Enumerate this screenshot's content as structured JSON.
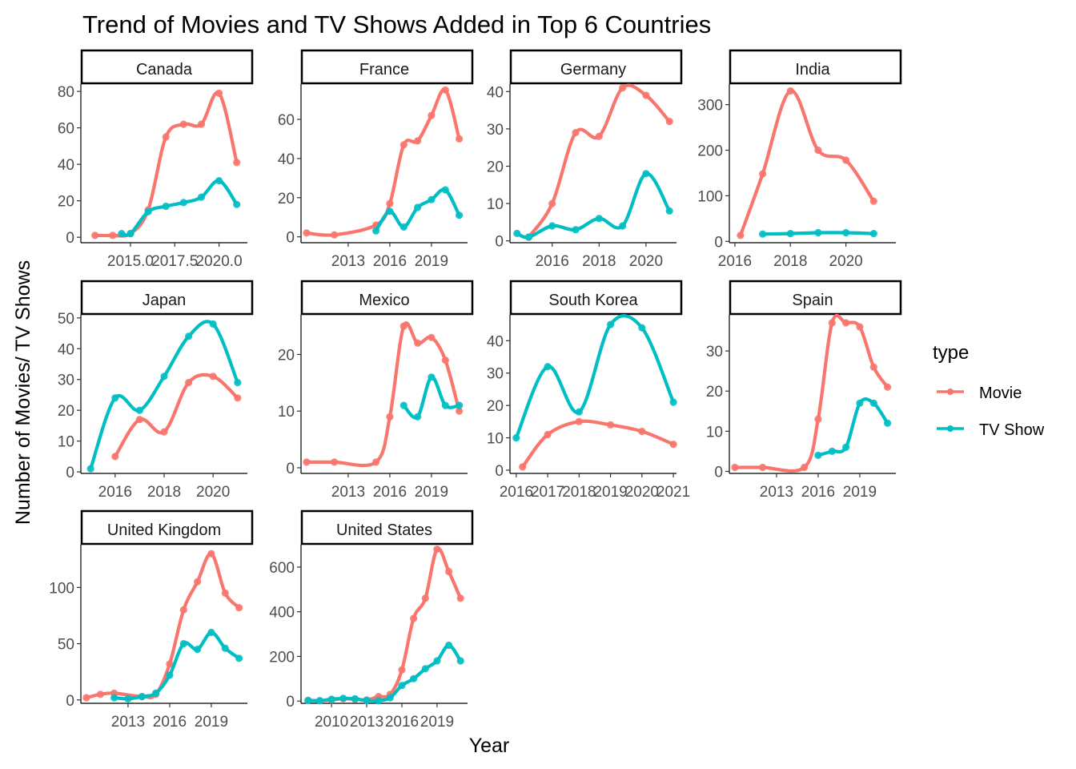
{
  "chart_data": {
    "type": "line",
    "title": "Trend of Movies and TV Shows Added in Top 6 Countries",
    "xlabel": "Year",
    "ylabel": "Number of Movies/ TV Shows",
    "facet_layout": "4 columns, free scales",
    "grid": false,
    "legend": {
      "title": "type",
      "placement": "right",
      "items": [
        {
          "label": "Movie",
          "color": "#F8766D"
        },
        {
          "label": "TV Show",
          "color": "#00BFC4"
        }
      ]
    },
    "series_colors": {
      "Movie": "#F8766D",
      "TV Show": "#00BFC4"
    },
    "facets": [
      {
        "name": "Canada",
        "xlim": [
          2012.2,
          2021.6
        ],
        "ylim": [
          -3,
          84
        ],
        "xticks": [
          2015,
          2017.5,
          2020
        ],
        "xtick_labels": [
          "2015.0",
          "2017.5",
          "2020.0"
        ],
        "yticks": [
          0,
          20,
          40,
          60,
          80
        ],
        "series": [
          {
            "type": "Movie",
            "x": [
              2013,
              2014,
              2015,
              2016,
              2017,
              2018,
              2019,
              2020,
              2021
            ],
            "y": [
              1,
              1,
              2,
              15,
              55,
              62,
              62,
              79,
              41
            ]
          },
          {
            "type": "TV Show",
            "x": [
              2014.5,
              2015,
              2016,
              2017,
              2018,
              2019,
              2020,
              2021
            ],
            "y": [
              2,
              2,
              14,
              17,
              19,
              22,
              31,
              18
            ]
          }
        ]
      },
      {
        "name": "France",
        "xlim": [
          2009.6,
          2021.6
        ],
        "ylim": [
          -3,
          78
        ],
        "xticks": [
          2013,
          2016,
          2019
        ],
        "xtick_labels": [
          "2013",
          "2016",
          "2019"
        ],
        "yticks": [
          0,
          20,
          40,
          60
        ],
        "series": [
          {
            "type": "Movie",
            "x": [
              2010,
              2012,
              2015,
              2016,
              2017,
              2018,
              2019,
              2020,
              2021
            ],
            "y": [
              2,
              1,
              6,
              17,
              47,
              49,
              62,
              75,
              50
            ]
          },
          {
            "type": "TV Show",
            "x": [
              2015,
              2016,
              2017,
              2018,
              2019,
              2020,
              2021
            ],
            "y": [
              3,
              13,
              5,
              15,
              19,
              24,
              11
            ]
          }
        ]
      },
      {
        "name": "Germany",
        "xlim": [
          2014.2,
          2021.3
        ],
        "ylim": [
          -0.5,
          42
        ],
        "xticks": [
          2016,
          2018,
          2020
        ],
        "xtick_labels": [
          "2016",
          "2018",
          "2020"
        ],
        "yticks": [
          0,
          10,
          20,
          30,
          40
        ],
        "series": [
          {
            "type": "Movie",
            "x": [
              2015,
              2016,
              2017,
              2018,
              2019,
              2020,
              2021
            ],
            "y": [
              1,
              10,
              29,
              28,
              41,
              39,
              32
            ]
          },
          {
            "type": "TV Show",
            "x": [
              2014.5,
              2015,
              2016,
              2017,
              2018,
              2019,
              2020,
              2021
            ],
            "y": [
              2,
              1,
              4,
              3,
              6,
              4,
              18,
              8
            ]
          }
        ]
      },
      {
        "name": "India",
        "xlim": [
          2015.8,
          2021.8
        ],
        "ylim": [
          -3,
          345
        ],
        "xticks": [
          2016,
          2018,
          2020
        ],
        "xtick_labels": [
          "2016",
          "2018",
          "2020"
        ],
        "yticks": [
          0,
          100,
          200,
          300
        ],
        "series": [
          {
            "type": "Movie",
            "x": [
              2016.2,
              2017,
              2018,
              2019,
              2020,
              2021
            ],
            "y": [
              13,
              148,
              330,
              200,
              178,
              88
            ]
          },
          {
            "type": "TV Show",
            "x": [
              2017,
              2018,
              2019,
              2020,
              2021
            ],
            "y": [
              16,
              17,
              19,
              19,
              17
            ]
          }
        ]
      },
      {
        "name": "Japan",
        "xlim": [
          2014.6,
          2021.4
        ],
        "ylim": [
          -0.5,
          51
        ],
        "xticks": [
          2016,
          2018,
          2020
        ],
        "xtick_labels": [
          "2016",
          "2018",
          "2020"
        ],
        "yticks": [
          0,
          10,
          20,
          30,
          40,
          50
        ],
        "series": [
          {
            "type": "Movie",
            "x": [
              2016,
              2017,
              2018,
              2019,
              2020,
              2021
            ],
            "y": [
              5,
              17,
              13,
              29,
              31,
              24
            ]
          },
          {
            "type": "TV Show",
            "x": [
              2015,
              2016,
              2017,
              2018,
              2019,
              2020,
              2021
            ],
            "y": [
              1,
              24,
              20,
              31,
              44,
              48,
              29
            ]
          }
        ]
      },
      {
        "name": "Mexico",
        "xlim": [
          2009.6,
          2021.6
        ],
        "ylim": [
          -1,
          27
        ],
        "xticks": [
          2013,
          2016,
          2019
        ],
        "xtick_labels": [
          "2013",
          "2016",
          "2019"
        ],
        "yticks": [
          0,
          10,
          20
        ],
        "series": [
          {
            "type": "Movie",
            "x": [
              2010,
              2012,
              2015,
              2016,
              2017,
              2018,
              2019,
              2020,
              2021
            ],
            "y": [
              1,
              1,
              1,
              9,
              25,
              22,
              23,
              19,
              10
            ]
          },
          {
            "type": "TV Show",
            "x": [
              2017,
              2018,
              2019,
              2020,
              2021
            ],
            "y": [
              11,
              9,
              16,
              11,
              11
            ]
          }
        ]
      },
      {
        "name": "South Korea",
        "xlim": [
          2015.8,
          2021.1
        ],
        "ylim": [
          -1,
          48
        ],
        "xticks": [
          2016,
          2017,
          2018,
          2019,
          2020,
          2021
        ],
        "xtick_labels": [
          "2016",
          "2017",
          "2018",
          "2019",
          "2020",
          "2021"
        ],
        "yticks": [
          0,
          10,
          20,
          30,
          40
        ],
        "series": [
          {
            "type": "Movie",
            "x": [
              2016.2,
              2017,
              2018,
              2019,
              2020,
              2021
            ],
            "y": [
              1,
              11,
              15,
              14,
              12,
              8
            ]
          },
          {
            "type": "TV Show",
            "x": [
              2016,
              2017,
              2018,
              2019,
              2020,
              2021
            ],
            "y": [
              10,
              32,
              18,
              45,
              44,
              21
            ]
          }
        ]
      },
      {
        "name": "Spain",
        "xlim": [
          2009.6,
          2021.6
        ],
        "ylim": [
          -0.5,
          39
        ],
        "xticks": [
          2013,
          2016,
          2019
        ],
        "xtick_labels": [
          "2013",
          "2016",
          "2019"
        ],
        "yticks": [
          0,
          10,
          20,
          30
        ],
        "series": [
          {
            "type": "Movie",
            "x": [
              2010,
              2012,
              2015,
              2016,
              2017,
              2018,
              2019,
              2020,
              2021
            ],
            "y": [
              1,
              1,
              1,
              13,
              37,
              37,
              36,
              26,
              21
            ]
          },
          {
            "type": "TV Show",
            "x": [
              2016,
              2017,
              2018,
              2019,
              2020,
              2021
            ],
            "y": [
              4,
              5,
              6,
              17,
              17,
              12
            ]
          }
        ]
      },
      {
        "name": "United Kingdom",
        "xlim": [
          2009.6,
          2021.6
        ],
        "ylim": [
          -3,
          138
        ],
        "xticks": [
          2013,
          2016,
          2019
        ],
        "xtick_labels": [
          "2013",
          "2016",
          "2019"
        ],
        "yticks": [
          0,
          50,
          100
        ],
        "series": [
          {
            "type": "Movie",
            "x": [
              2010,
              2011,
              2012,
              2014,
              2015,
              2016,
              2017,
              2018,
              2019,
              2020,
              2021
            ],
            "y": [
              2,
              5,
              6,
              3,
              5,
              32,
              80,
              105,
              130,
              95,
              82
            ]
          },
          {
            "type": "TV Show",
            "x": [
              2012,
              2013,
              2014,
              2015,
              2016,
              2017,
              2018,
              2019,
              2020,
              2021
            ],
            "y": [
              2,
              1,
              3,
              6,
              22,
              50,
              45,
              60,
              46,
              37
            ]
          }
        ]
      },
      {
        "name": "United States",
        "xlim": [
          2007.4,
          2021.6
        ],
        "ylim": [
          -10,
          700
        ],
        "xticks": [
          2010,
          2013,
          2016,
          2019
        ],
        "xtick_labels": [
          "2010",
          "2013",
          "2016",
          "2019"
        ],
        "yticks": [
          0,
          200,
          400,
          600
        ],
        "series": [
          {
            "type": "Movie",
            "x": [
              2008,
              2009,
              2010,
              2011,
              2012,
              2013,
              2014,
              2015,
              2016,
              2017,
              2018,
              2019,
              2020,
              2021
            ],
            "y": [
              3,
              2,
              5,
              11,
              8,
              5,
              20,
              30,
              140,
              370,
              460,
              680,
              580,
              460
            ]
          },
          {
            "type": "TV Show",
            "x": [
              2008,
              2009,
              2010,
              2011,
              2012,
              2013,
              2014,
              2015,
              2016,
              2017,
              2018,
              2019,
              2020,
              2021
            ],
            "y": [
              3,
              2,
              8,
              12,
              10,
              3,
              2,
              15,
              70,
              100,
              145,
              180,
              250,
              180
            ]
          }
        ]
      }
    ]
  }
}
